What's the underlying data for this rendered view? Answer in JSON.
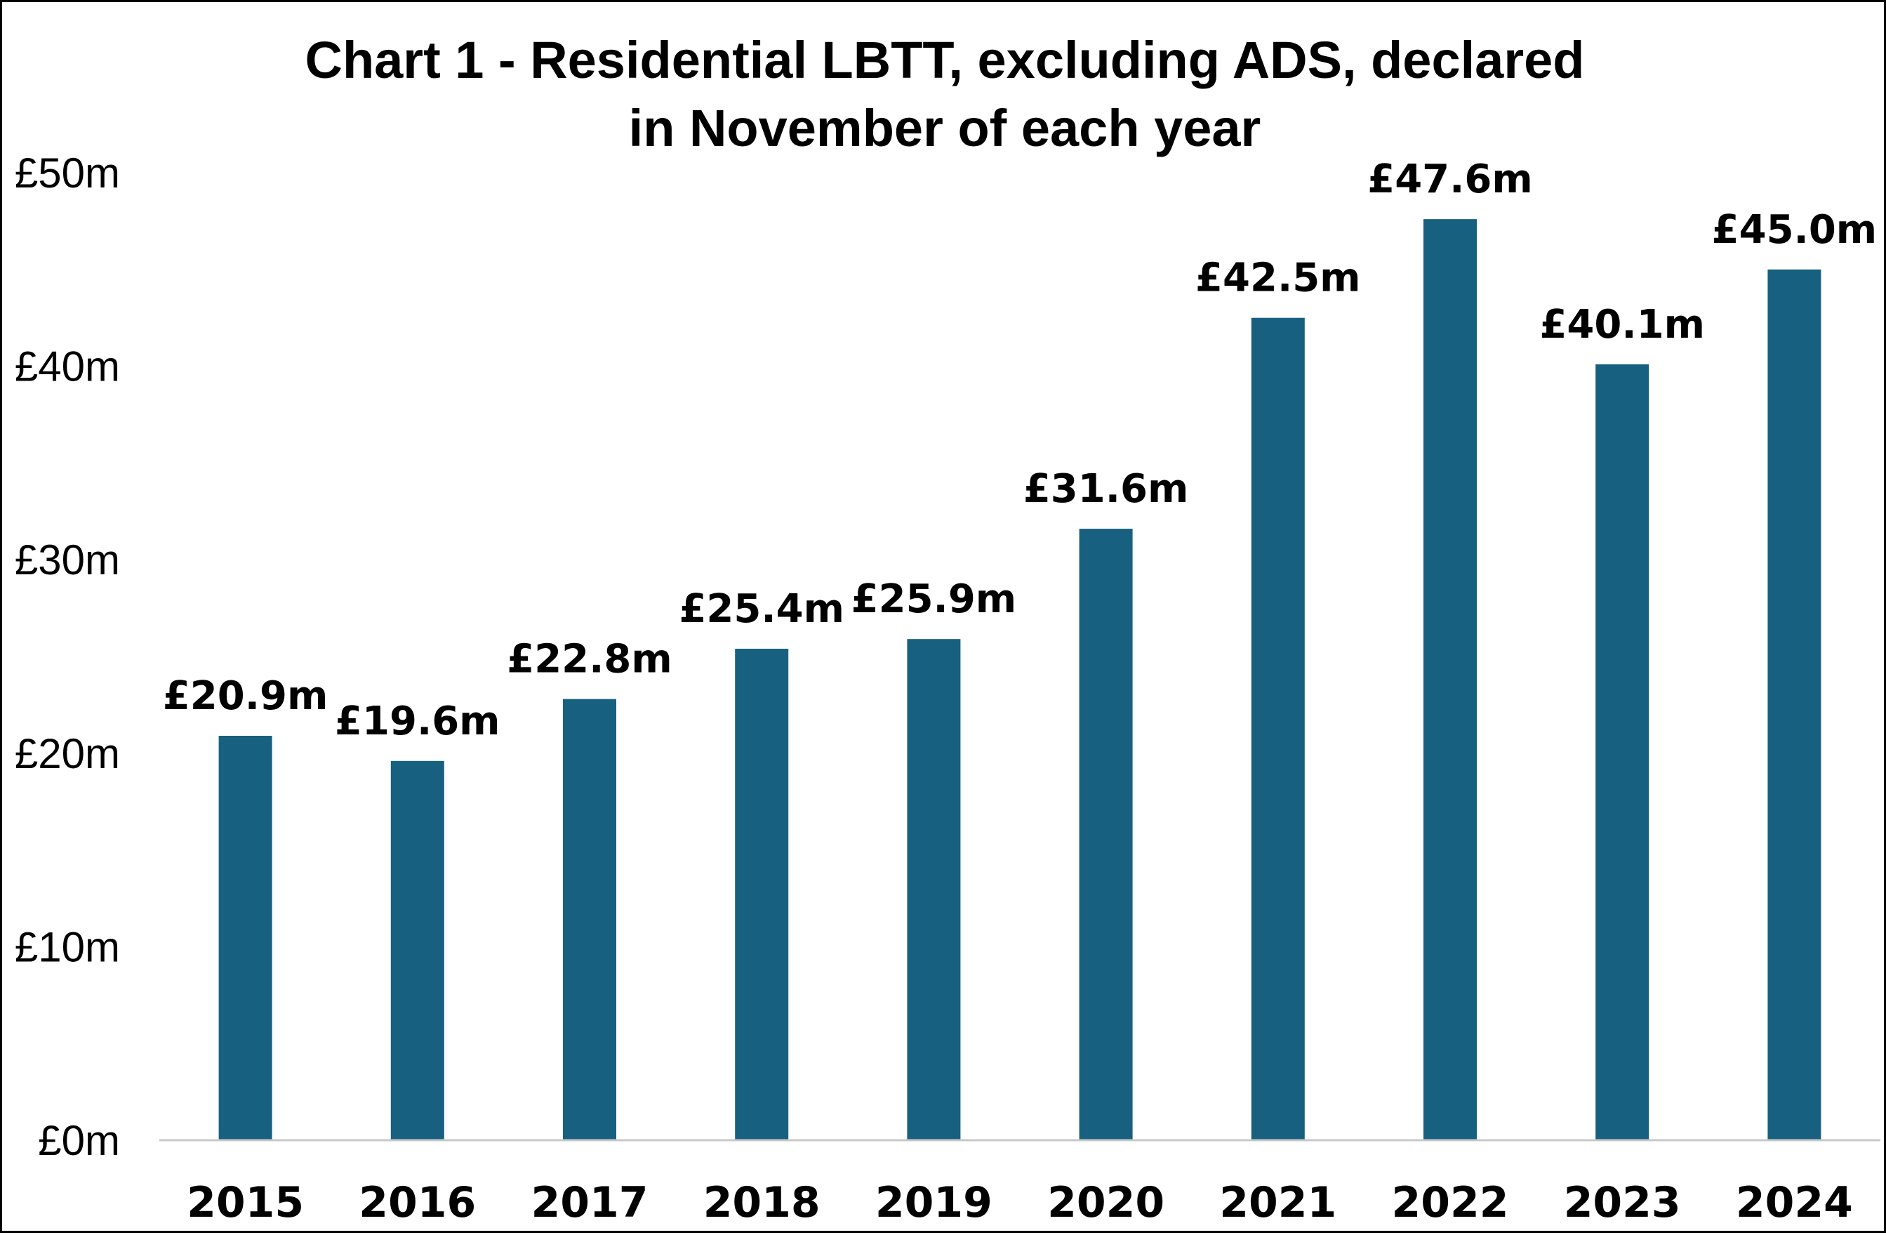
{
  "chart_data": {
    "type": "bar",
    "title_lines": [
      "Chart 1 - Residential LBTT, excluding ADS, declared",
      "in November of each year"
    ],
    "categories": [
      "2015",
      "2016",
      "2017",
      "2018",
      "2019",
      "2020",
      "2021",
      "2022",
      "2023",
      "2024"
    ],
    "values": [
      20.9,
      19.6,
      22.8,
      25.4,
      25.9,
      31.6,
      42.5,
      47.6,
      40.1,
      45.0
    ],
    "data_labels": [
      "£20.9m",
      "£19.6m",
      "£22.8m",
      "£25.4m",
      "£25.9m",
      "£31.6m",
      "£42.5m",
      "£47.6m",
      "£40.1m",
      "£45.0m"
    ],
    "y_ticks": [
      0,
      10,
      20,
      30,
      40,
      50
    ],
    "y_tick_labels": [
      "£0m",
      "£10m",
      "£20m",
      "£30m",
      "£40m",
      "£50m"
    ],
    "ylim": [
      0,
      50
    ],
    "xlabel": "",
    "ylabel": "",
    "grid": false,
    "legend": "none",
    "bar_color": "#17607F",
    "axis_color": "#C8C8C8"
  }
}
